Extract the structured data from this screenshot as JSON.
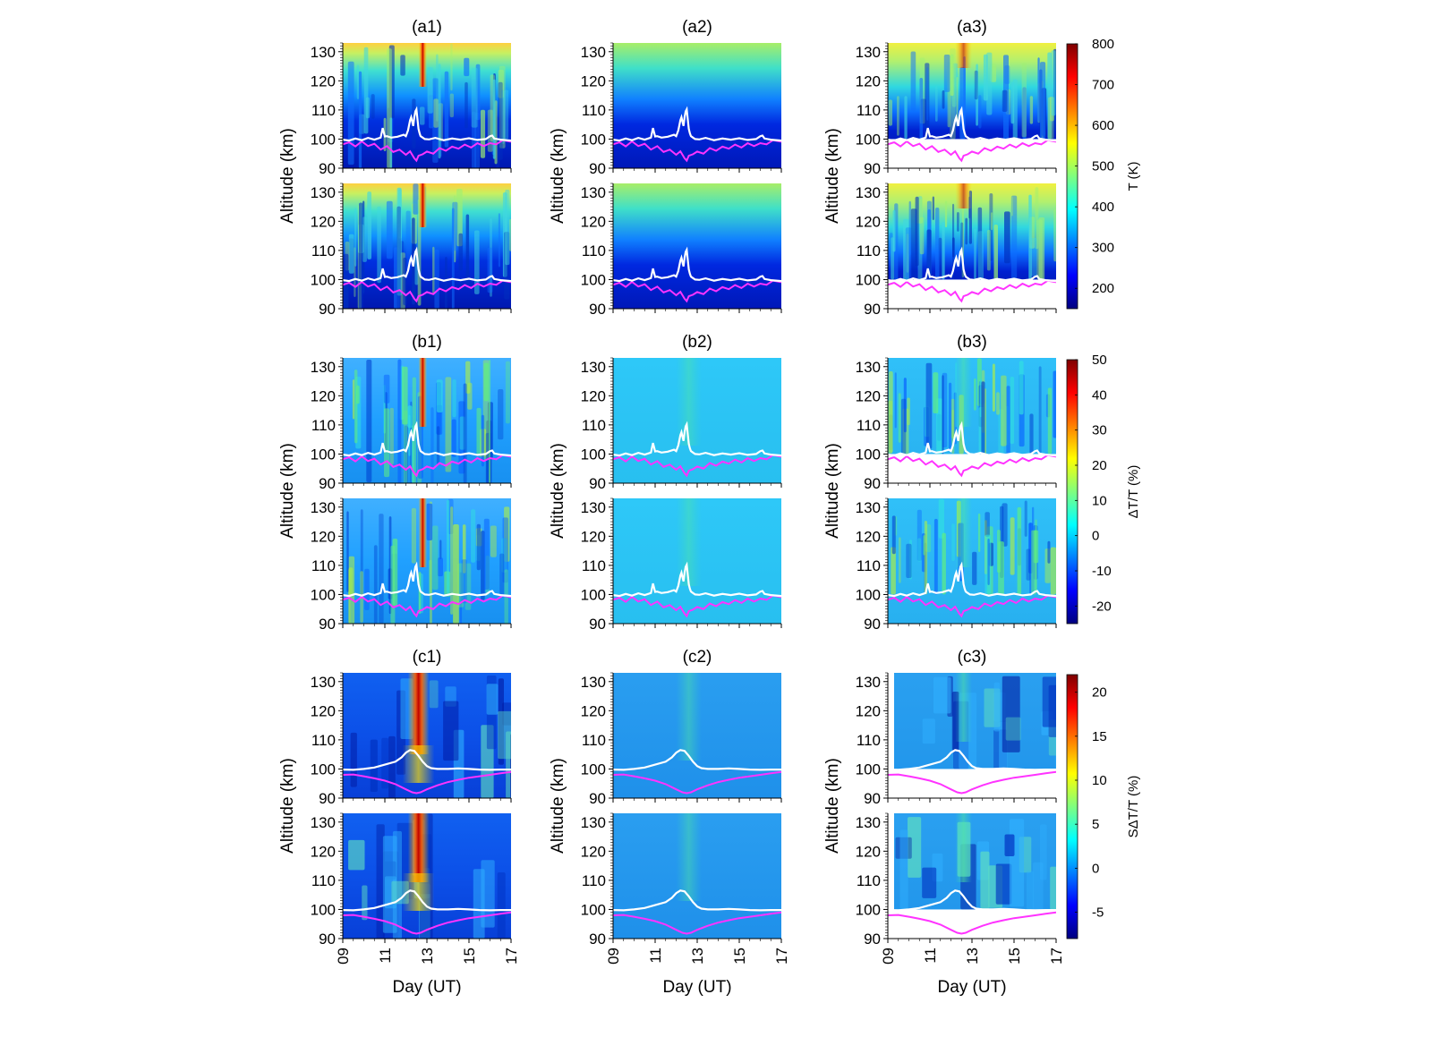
{
  "chart_data": {
    "type": "heatmap",
    "layout": {
      "rows": 3,
      "columns": 3,
      "sub_panels_per_cell": 2
    },
    "panel_titles": [
      [
        "(a1)",
        "(a2)",
        "(a3)"
      ],
      [
        "(b1)",
        "(b2)",
        "(b3)"
      ],
      [
        "(c1)",
        "(c2)",
        "(c3)"
      ]
    ],
    "ylabel": "Altitude (km)",
    "xlabel": "Day (UT)",
    "ylim": [
      90,
      133
    ],
    "yticks": [
      90,
      100,
      110,
      120,
      130
    ],
    "xlim": [
      9,
      17
    ],
    "xticks": [
      9,
      11,
      13,
      15,
      17
    ],
    "xtick_labels": [
      "09",
      "11",
      "13",
      "15",
      "17"
    ],
    "colorbars": [
      {
        "label": "T (K)",
        "range": [
          150,
          800
        ],
        "ticks": [
          200,
          300,
          400,
          500,
          600,
          700,
          800
        ]
      },
      {
        "label": "ΔT/T (%)",
        "range": [
          -25,
          50
        ],
        "ticks": [
          -20,
          -10,
          0,
          10,
          20,
          30,
          40,
          50
        ]
      },
      {
        "label": "SΔT/T (%)",
        "range": [
          -8,
          22
        ],
        "ticks": [
          -5,
          0,
          5,
          10,
          15,
          20
        ]
      }
    ],
    "colormap": [
      "#00007f",
      "#0000ff",
      "#007fff",
      "#00ffff",
      "#7fff7f",
      "#ffff00",
      "#ff7f00",
      "#ff0000",
      "#7f0000"
    ],
    "line_colors": {
      "white_line": "#ffffff",
      "magenta_line": "#ff33ff"
    },
    "white_line_rows_ab": {
      "x": [
        9.0,
        9.3,
        9.6,
        9.9,
        10.2,
        10.5,
        10.8,
        10.9,
        11.0,
        11.1,
        11.3,
        11.6,
        11.9,
        12.0,
        12.1,
        12.2,
        12.25,
        12.3,
        12.35,
        12.4,
        12.45,
        12.5,
        12.55,
        12.6,
        12.65,
        12.7,
        12.8,
        12.9,
        13.1,
        13.4,
        13.8,
        14.2,
        14.6,
        15.0,
        15.4,
        15.8,
        16.0,
        16.1,
        16.2,
        16.5,
        17.0
      ],
      "y": [
        99.8,
        99.5,
        100.2,
        99.6,
        100.4,
        99.8,
        100.5,
        103.8,
        100.9,
        101.0,
        100.5,
        100.8,
        101.5,
        101.0,
        103.0,
        106.5,
        107.5,
        106.0,
        104.5,
        107.5,
        109.5,
        110.2,
        107.0,
        103.5,
        102.0,
        101.0,
        100.5,
        100.0,
        99.9,
        100.4,
        99.6,
        100.2,
        99.8,
        100.3,
        99.7,
        100.0,
        101.0,
        101.2,
        100.2,
        99.8,
        99.5
      ]
    },
    "magenta_line_rows_ab": {
      "x": [
        9.0,
        9.3,
        9.6,
        9.9,
        10.2,
        10.5,
        10.8,
        11.1,
        11.4,
        11.7,
        12.0,
        12.2,
        12.4,
        12.5,
        12.6,
        12.8,
        13.0,
        13.3,
        13.6,
        13.9,
        14.2,
        14.5,
        14.8,
        15.1,
        15.4,
        15.7,
        16.0,
        16.3,
        16.6,
        17.0
      ],
      "y": [
        98.2,
        98.9,
        97.5,
        99.2,
        97.6,
        98.4,
        96.4,
        97.6,
        95.6,
        96.4,
        94.6,
        95.8,
        93.4,
        92.6,
        94.3,
        94.8,
        95.7,
        95.0,
        96.9,
        96.0,
        97.4,
        96.7,
        98.1,
        97.1,
        98.6,
        97.6,
        98.6,
        98.2,
        99.6,
        99.1
      ]
    },
    "white_line_row_c": {
      "x": [
        9.0,
        9.5,
        10.0,
        10.5,
        11.0,
        11.5,
        11.8,
        12.0,
        12.2,
        12.4,
        12.6,
        12.8,
        13.0,
        13.2,
        13.5,
        14.0,
        14.5,
        15.0,
        15.5,
        16.0,
        16.5,
        17.0
      ],
      "y": [
        99.8,
        99.7,
        100.0,
        100.5,
        101.5,
        102.5,
        104.0,
        105.6,
        106.5,
        106.2,
        104.5,
        102.5,
        101.0,
        100.3,
        100.0,
        100.0,
        100.2,
        100.0,
        99.8,
        99.7,
        99.8,
        99.8
      ]
    },
    "magenta_line_row_c": {
      "x": [
        9.0,
        9.5,
        10.0,
        10.5,
        11.0,
        11.5,
        12.0,
        12.3,
        12.5,
        12.7,
        13.0,
        13.5,
        14.0,
        14.5,
        15.0,
        15.5,
        16.0,
        16.5,
        17.0
      ],
      "y": [
        98.0,
        98.1,
        97.5,
        96.8,
        96.0,
        94.8,
        93.0,
        92.0,
        91.7,
        92.0,
        93.0,
        94.4,
        95.5,
        96.3,
        97.0,
        97.5,
        98.0,
        98.5,
        99.0
      ]
    }
  }
}
